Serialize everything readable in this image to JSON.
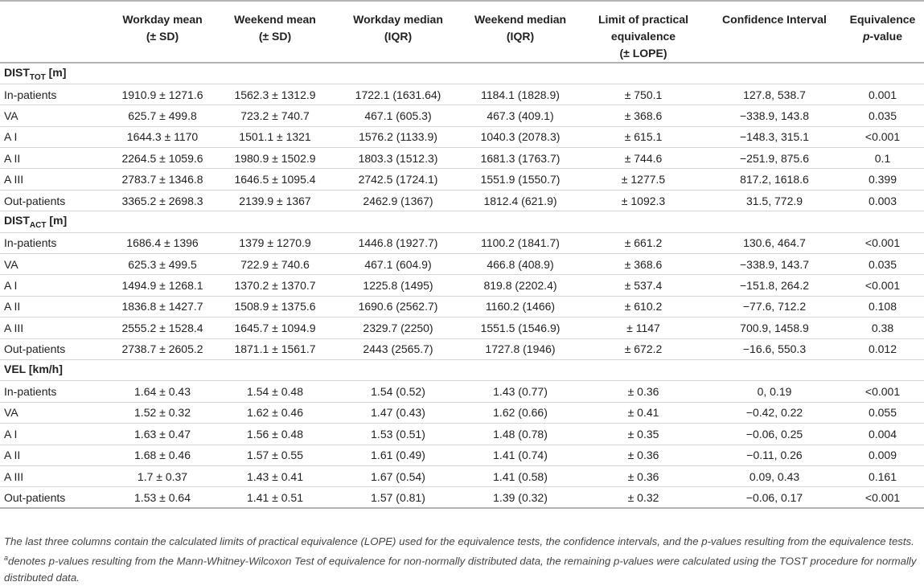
{
  "header": {
    "col1": "Workday mean",
    "col1b": "(± SD)",
    "col2": "Weekend mean",
    "col2b": "(± SD)",
    "col3": "Workday median",
    "col3b": "(IQR)",
    "col4": "Weekend median",
    "col4b": "(IQR)",
    "col5": "Limit of practical",
    "col5b": "equivalence",
    "col5c": "(± LOPE)",
    "col6": "Confidence Interval",
    "col7": "Equivalence",
    "col7p": "p",
    "col7b": "-value"
  },
  "sections": [
    {
      "title_main": "DIST",
      "title_sub": "TOT",
      "title_unit": " [m]",
      "rows": [
        [
          "In-patients",
          "1910.9 ± 1271.6",
          "1562.3 ± 1312.9",
          "1722.1 (1631.64)",
          "1184.1 (1828.9)",
          "± 750.1",
          "127.8, 538.7",
          "0.001"
        ],
        [
          "VA",
          "625.7 ± 499.8",
          "723.2 ± 740.7",
          "467.1 (605.3)",
          "467.3 (409.1)",
          "± 368.6",
          "−338.9, 143.8",
          "0.035"
        ],
        [
          "A I",
          "1644.3 ± 1170",
          "1501.1 ± 1321",
          "1576.2 (1133.9)",
          "1040.3 (2078.3)",
          "± 615.1",
          "−148.3, 315.1",
          "<0.001"
        ],
        [
          "A II",
          "2264.5 ± 1059.6",
          "1980.9 ± 1502.9",
          "1803.3 (1512.3)",
          "1681.3 (1763.7)",
          "± 744.6",
          "−251.9, 875.6",
          "0.1"
        ],
        [
          "A III",
          "2783.7 ± 1346.8",
          "1646.5 ± 1095.4",
          "2742.5 (1724.1)",
          "1551.9 (1550.7)",
          "± 1277.5",
          "817.2, 1618.6",
          "0.399"
        ],
        [
          "Out-patients",
          "3365.2 ± 2698.3",
          "2139.9 ± 1367",
          "2462.9 (1367)",
          "1812.4 (621.9)",
          "± 1092.3",
          "31.5, 772.9",
          "0.003"
        ]
      ]
    },
    {
      "title_main": "DIST",
      "title_sub": "ACT",
      "title_unit": " [m]",
      "rows": [
        [
          "In-patients",
          "1686.4 ± 1396",
          "1379 ± 1270.9",
          "1446.8 (1927.7)",
          "1100.2 (1841.7)",
          "± 661.2",
          "130.6, 464.7",
          "<0.001"
        ],
        [
          "VA",
          "625.3 ± 499.5",
          "722.9 ± 740.6",
          "467.1 (604.9)",
          "466.8 (408.9)",
          "± 368.6",
          "−338.9, 143.7",
          "0.035"
        ],
        [
          "A I",
          "1494.9 ± 1268.1",
          "1370.2 ± 1370.7",
          "1225.8 (1495)",
          "819.8 (2202.4)",
          "± 537.4",
          "−151.8, 264.2",
          "<0.001"
        ],
        [
          "A II",
          "1836.8 ± 1427.7",
          "1508.9 ± 1375.6",
          "1690.6 (2562.7)",
          "1160.2 (1466)",
          "± 610.2",
          "−77.6, 712.2",
          "0.108"
        ],
        [
          "A III",
          "2555.2 ± 1528.4",
          "1645.7 ± 1094.9",
          "2329.7 (2250)",
          "1551.5 (1546.9)",
          "± 1147",
          "700.9, 1458.9",
          "0.38"
        ],
        [
          "Out-patients",
          "2738.7 ± 2605.2",
          "1871.1 ± 1561.7",
          "2443 (2565.7)",
          "1727.8 (1946)",
          "± 672.2",
          "−16.6, 550.3",
          "0.012"
        ]
      ]
    },
    {
      "title_main": "VEL [km/h]",
      "title_sub": "",
      "title_unit": "",
      "rows": [
        [
          "In-patients",
          "1.64 ± 0.43",
          "1.54 ± 0.48",
          "1.54 (0.52)",
          "1.43 (0.77)",
          "± 0.36",
          "0, 0.19",
          "<0.001"
        ],
        [
          "VA",
          "1.52 ± 0.32",
          "1.62 ± 0.46",
          "1.47 (0.43)",
          "1.62 (0.66)",
          "± 0.41",
          "−0.42, 0.22",
          "0.055"
        ],
        [
          "A I",
          "1.63 ± 0.47",
          "1.56 ± 0.48",
          "1.53 (0.51)",
          "1.48 (0.78)",
          "± 0.35",
          "−0.06, 0.25",
          "0.004"
        ],
        [
          "A II",
          "1.68 ± 0.46",
          "1.57 ± 0.55",
          "1.61 (0.49)",
          "1.41 (0.74)",
          "± 0.36",
          "−0.11, 0.26",
          "0.009"
        ],
        [
          "A III",
          "1.7 ± 0.37",
          "1.43 ± 0.41",
          "1.67 (0.54)",
          "1.41 (0.58)",
          "± 0.36",
          "0.09, 0.43",
          "0.161"
        ],
        [
          "Out-patients",
          "1.53 ± 0.64",
          "1.41 ± 0.51",
          "1.57 (0.81)",
          "1.39 (0.32)",
          "± 0.32",
          "−0.06, 0.17",
          "<0.001"
        ]
      ]
    }
  ],
  "caption": {
    "part1": "The last three columns contain the calculated limits of practical equivalence (LOPE) used for the equivalence tests, the confidence intervals, and the p-values resulting from the equivalence tests. ",
    "sup": "a",
    "part2": "denotes p-values resulting from the Mann-Whitney-Wilcoxon Test of equivalence for non-normally distributed data, the remaining p-values were calculated using the TOST procedure for normally distributed data."
  }
}
